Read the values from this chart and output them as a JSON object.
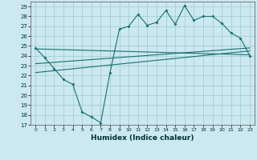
{
  "xlabel": "Humidex (Indice chaleur)",
  "bg_color": "#cce8f0",
  "line_color": "#1a7070",
  "grid_color": "#99ccc8",
  "xlim": [
    -0.5,
    23.5
  ],
  "ylim": [
    17,
    29.5
  ],
  "xticks": [
    0,
    1,
    2,
    3,
    4,
    5,
    6,
    7,
    8,
    9,
    10,
    11,
    12,
    13,
    14,
    15,
    16,
    17,
    18,
    19,
    20,
    21,
    22,
    23
  ],
  "yticks": [
    17,
    18,
    19,
    20,
    21,
    22,
    23,
    24,
    25,
    26,
    27,
    28,
    29
  ],
  "series1": [
    24.8,
    23.8,
    22.7,
    21.6,
    21.1,
    18.3,
    17.8,
    17.2,
    22.3,
    26.7,
    27.0,
    28.2,
    27.1,
    27.4,
    28.6,
    27.2,
    29.1,
    27.6,
    28.0,
    28.0,
    27.3,
    26.3,
    25.8,
    24.0
  ],
  "line2_x": [
    0,
    23
  ],
  "line2_y": [
    24.7,
    24.1
  ],
  "line3_x": [
    0,
    23
  ],
  "line3_y": [
    23.2,
    24.8
  ],
  "line4_x": [
    0,
    23
  ],
  "line4_y": [
    22.3,
    24.5
  ]
}
